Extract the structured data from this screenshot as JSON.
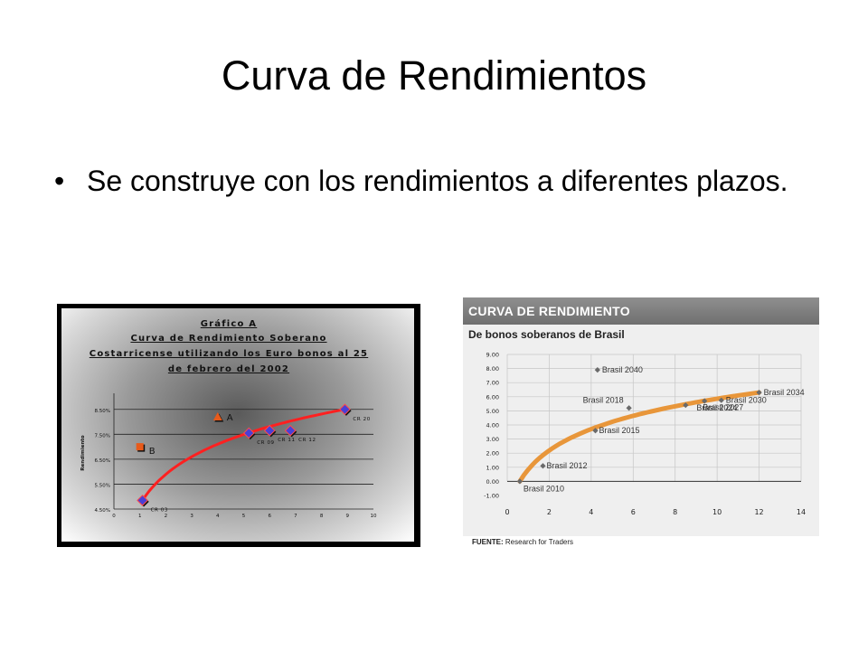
{
  "slide": {
    "title": "Curva de Rendimientos",
    "bullet": "Se construye con los rendimientos a diferentes plazos."
  },
  "chart_data": [
    {
      "type": "scatter",
      "title_lines": [
        "Gráfico A",
        "Curva de Rendimiento Soberano",
        "Costarricense utilizando los Euro bonos al 25",
        "de febrero del 2002"
      ],
      "ylabel": "Rendimiento",
      "xlim": [
        0,
        10
      ],
      "ylim": [
        4.5,
        9.0
      ],
      "x_ticks": [
        0,
        1,
        2,
        3,
        4,
        5,
        6,
        7,
        8,
        9,
        10
      ],
      "y_ticks": [
        "4.50%",
        "5.50%",
        "6.50%",
        "7.50%",
        "8.50%"
      ],
      "y_tick_values": [
        4.5,
        5.5,
        6.5,
        7.5,
        8.5
      ],
      "grid": true,
      "series": [
        {
          "points": [
            {
              "label": "CR 03",
              "x": 1.1,
              "y": 4.85
            },
            {
              "label": "CR 09",
              "x": 5.2,
              "y": 7.55
            },
            {
              "label": "CR 11",
              "x": 6.0,
              "y": 7.65
            },
            {
              "label": "CR 12",
              "x": 6.8,
              "y": 7.65
            },
            {
              "label": "CR 20",
              "x": 8.9,
              "y": 8.5
            }
          ]
        }
      ],
      "outliers": [
        {
          "label": "A",
          "x": 4.0,
          "y": 8.2,
          "color": "#e85a1a"
        },
        {
          "label": "B",
          "x": 1.0,
          "y": 7.0,
          "color": "#e85a1a"
        }
      ],
      "trend_color": "#ff2020",
      "marker_color": "#4a3fd6"
    },
    {
      "type": "scatter",
      "header": "CURVA DE RENDIMIENTO",
      "title": "De bonos soberanos de Brasil",
      "source_label": "FUENTE:",
      "source_text": "Research for Traders",
      "xlim": [
        0,
        14
      ],
      "ylim": [
        -1,
        9
      ],
      "x_ticks": [
        0,
        2,
        4,
        6,
        8,
        10,
        12,
        14
      ],
      "y_ticks": [
        "9.00",
        "8.00",
        "7.00",
        "6.00",
        "5.00",
        "4.00",
        "3.00",
        "2.00",
        "1.00",
        "0.00",
        "-1.00"
      ],
      "y_tick_values": [
        9,
        8,
        7,
        6,
        5,
        4,
        3,
        2,
        1,
        0,
        -1
      ],
      "grid": true,
      "trend_color": "#e8963a",
      "marker_color": "#6a6a6a",
      "points": [
        {
          "label": "Brasil 2010",
          "x": 0.6,
          "y": 0.0
        },
        {
          "label": "Brasil 2012",
          "x": 1.7,
          "y": 1.1
        },
        {
          "label": "Brasil 2015",
          "x": 4.2,
          "y": 3.6
        },
        {
          "label": "Brasil 2018",
          "x": 5.8,
          "y": 5.2
        },
        {
          "label": "Brasil 2024",
          "x": 8.5,
          "y": 5.4
        },
        {
          "label": "Brasil 2027",
          "x": 9.4,
          "y": 5.7
        },
        {
          "label": "Brasil 2030",
          "x": 10.2,
          "y": 5.75
        },
        {
          "label": "Brasil 2034",
          "x": 12.0,
          "y": 6.3
        },
        {
          "label": "Brasil 2040",
          "x": 4.3,
          "y": 7.9
        }
      ]
    }
  ]
}
